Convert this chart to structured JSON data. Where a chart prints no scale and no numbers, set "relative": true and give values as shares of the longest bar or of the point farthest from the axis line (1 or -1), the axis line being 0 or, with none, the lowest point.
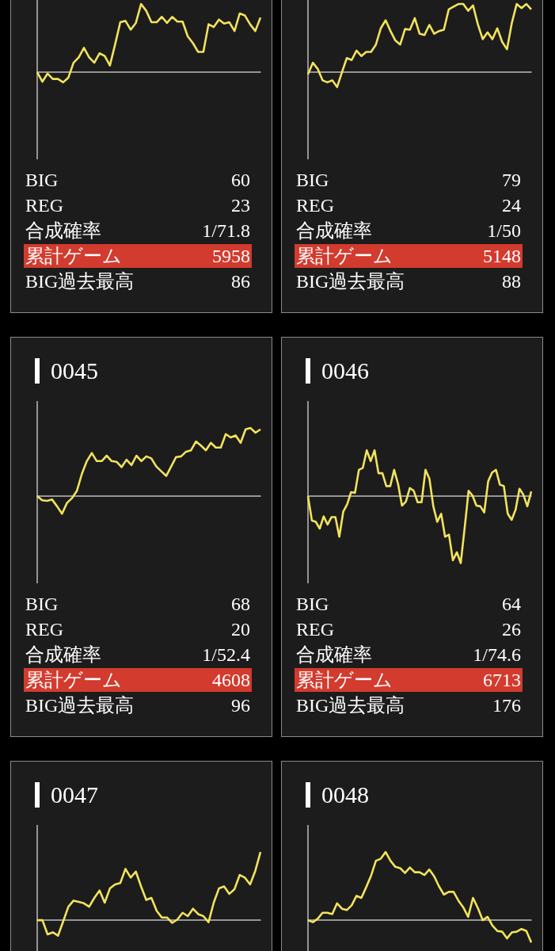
{
  "chart_data": [
    {
      "type": "line",
      "relative": true,
      "tick_labels": false,
      "categories": [
        null,
        null,
        null,
        null,
        null,
        null,
        null,
        null,
        null,
        null,
        null,
        null,
        null,
        null,
        null,
        null,
        null,
        null,
        null,
        null,
        null,
        null,
        null,
        null,
        null,
        null,
        null,
        null,
        null,
        null,
        null,
        null,
        null,
        null,
        null,
        null,
        null,
        null,
        null,
        null,
        null,
        null,
        null,
        null
      ],
      "series": [
        {
          "color": "#f2e35c",
          "values": [
            -0.01,
            -0.15,
            -0.03,
            -0.11,
            -0.11,
            -0.16,
            -0.09,
            0.13,
            0.21,
            0.35,
            0.21,
            0.13,
            0.27,
            0.23,
            0.09,
            0.4,
            0.73,
            0.75,
            0.62,
            0.72,
            1,
            0.9,
            0.73,
            0.73,
            0.81,
            0.72,
            0.81,
            0.74,
            0.74,
            0.52,
            0.42,
            0.29,
            0.29,
            0.7,
            0.66,
            0.77,
            0.71,
            0.73,
            0.6,
            0.86,
            0.83,
            0.7,
            0.6,
            0.8
          ]
        }
      ],
      "annotations": [
        "BIG",
        "60",
        "REG",
        "23",
        "合成確率",
        "1/71.8",
        "累計ゲーム",
        "5958",
        "BIG過去最高",
        "86"
      ]
    },
    {
      "type": "line",
      "relative": true,
      "tick_labels": false,
      "categories": [
        null,
        null,
        null,
        null,
        null,
        null,
        null,
        null,
        null,
        null,
        null,
        null,
        null,
        null,
        null,
        null,
        null,
        null,
        null,
        null,
        null,
        null,
        null,
        null,
        null,
        null,
        null,
        null,
        null,
        null,
        null,
        null,
        null,
        null,
        null,
        null,
        null,
        null,
        null,
        null,
        null,
        null,
        null,
        null,
        null,
        null,
        null
      ],
      "series": [
        {
          "color": "#f2e35c",
          "values": [
            -0.04,
            0.13,
            0.04,
            -0.13,
            -0.16,
            -0.13,
            -0.23,
            -0.01,
            0.2,
            0.17,
            0.31,
            0.23,
            0.29,
            0.29,
            0.4,
            0.64,
            0.76,
            0.6,
            0.46,
            0.4,
            0.63,
            0.62,
            0.79,
            0.56,
            0.54,
            0.69,
            0.56,
            0.6,
            0.62,
            0.92,
            0.96,
            1,
            1,
            0.9,
            0.98,
            0.7,
            0.48,
            0.58,
            0.48,
            0.64,
            0.44,
            0.33,
            0.72,
            1,
            0.94,
            1,
            0.92
          ]
        }
      ],
      "annotations": [
        "BIG",
        "79",
        "REG",
        "24",
        "合成確率",
        "1/50",
        "累計ゲーム",
        "5148",
        "BIG過去最高",
        "88"
      ]
    },
    {
      "type": "line",
      "relative": true,
      "tick_labels": false,
      "title": "0045",
      "categories": [
        null,
        null,
        null,
        null,
        null,
        null,
        null,
        null,
        null,
        null,
        null,
        null,
        null,
        null,
        null,
        null,
        null,
        null,
        null,
        null,
        null,
        null,
        null,
        null,
        null,
        null,
        null,
        null,
        null,
        null,
        null,
        null,
        null,
        null,
        null,
        null,
        null,
        null,
        null,
        null,
        null,
        null,
        null,
        null,
        null,
        null
      ],
      "series": [
        {
          "color": "#f2e35c",
          "values": [
            -0.01,
            -0.07,
            -0.08,
            -0.06,
            -0.16,
            -0.27,
            -0.11,
            -0.04,
            0.07,
            0.32,
            0.51,
            0.63,
            0.51,
            0.51,
            0.59,
            0.51,
            0.5,
            0.42,
            0.53,
            0.45,
            0.59,
            0.51,
            0.58,
            0.55,
            0.43,
            0.36,
            0.29,
            0.43,
            0.57,
            0.58,
            0.65,
            0.67,
            0.8,
            0.74,
            0.67,
            0.78,
            0.71,
            0.71,
            0.91,
            0.86,
            0.89,
            0.78,
            0.98,
            1,
            0.93,
            0.98
          ]
        }
      ],
      "annotations": [
        "BIG",
        "68",
        "REG",
        "20",
        "合成確率",
        "1/52.4",
        "累計ゲーム",
        "4608",
        "BIG過去最高",
        "96"
      ]
    },
    {
      "type": "line",
      "relative": true,
      "tick_labels": false,
      "title": "0046",
      "categories": [
        null,
        null,
        null,
        null,
        null,
        null,
        null,
        null,
        null,
        null,
        null,
        null,
        null,
        null,
        null,
        null,
        null,
        null,
        null,
        null,
        null,
        null,
        null,
        null,
        null,
        null,
        null,
        null,
        null,
        null,
        null,
        null,
        null,
        null,
        null,
        null,
        null,
        null,
        null,
        null,
        null,
        null,
        null,
        null,
        null,
        null,
        null,
        null,
        null,
        null,
        null,
        null,
        null,
        null,
        null,
        null,
        null,
        null
      ],
      "series": [
        {
          "color": "#f2e35c",
          "values": [
            -0.01,
            -0.37,
            -0.39,
            -0.49,
            -0.31,
            -0.43,
            -0.32,
            -0.32,
            -0.61,
            -0.24,
            -0.13,
            0.05,
            0.04,
            0.38,
            0.41,
            0.67,
            0.51,
            0.67,
            0.33,
            0.33,
            0.14,
            0.14,
            0.38,
            0.17,
            -0.15,
            -0.09,
            0.11,
            0.07,
            -0.1,
            -0.1,
            0.38,
            0.25,
            -0.16,
            -0.39,
            -0.27,
            -0.61,
            -0.58,
            -0.96,
            -0.84,
            -1,
            -0.48,
            0.07,
            0,
            -0.15,
            -0.16,
            -0.25,
            0.21,
            0.34,
            0.38,
            0.16,
            0.14,
            -0.27,
            -0.36,
            -0.21,
            0.1,
            0.01,
            -0.16,
            0.06
          ]
        }
      ],
      "annotations": [
        "BIG",
        "64",
        "REG",
        "26",
        "合成確率",
        "1/74.6",
        "累計ゲーム",
        "6713",
        "BIG過去最高",
        "176"
      ]
    },
    {
      "type": "line",
      "relative": true,
      "tick_labels": false,
      "title": "0047",
      "categories": [
        null,
        null,
        null,
        null,
        null,
        null,
        null,
        null,
        null,
        null,
        null,
        null,
        null,
        null,
        null,
        null,
        null,
        null,
        null,
        null,
        null,
        null,
        null,
        null,
        null,
        null,
        null,
        null,
        null,
        null,
        null,
        null,
        null,
        null,
        null,
        null,
        null,
        null,
        null,
        null,
        null,
        null,
        null,
        null
      ],
      "series": [
        {
          "color": "#f2e35c",
          "values": [
            -0.01,
            -0.01,
            -0.22,
            -0.19,
            -0.24,
            -0.03,
            0.19,
            0.28,
            0.26,
            0.24,
            0.19,
            0.32,
            0.43,
            0.25,
            0.46,
            0.52,
            0.54,
            0.75,
            0.62,
            0.71,
            0.49,
            0.29,
            0.32,
            0.13,
            0.03,
            0.03,
            -0.05,
            0,
            0.1,
            0.05,
            0.16,
            0.08,
            0.05,
            -0.04,
            0.25,
            0.46,
            0.49,
            0.38,
            0.45,
            0.66,
            0.62,
            0.52,
            0.72,
            1
          ]
        }
      ]
    },
    {
      "type": "line",
      "relative": true,
      "tick_labels": false,
      "title": "0048",
      "categories": [
        null,
        null,
        null,
        null,
        null,
        null,
        null,
        null,
        null,
        null,
        null,
        null,
        null,
        null,
        null,
        null,
        null,
        null,
        null,
        null,
        null,
        null,
        null,
        null,
        null,
        null,
        null,
        null,
        null,
        null,
        null,
        null,
        null,
        null,
        null,
        null,
        null,
        null,
        null,
        null,
        null,
        null,
        null,
        null,
        null,
        null,
        null
      ],
      "series": [
        {
          "color": "#f2e35c",
          "values": [
            -0.01,
            -0.04,
            0.01,
            0.1,
            0.1,
            0.08,
            0.24,
            0.16,
            0.14,
            0.21,
            0.35,
            0.32,
            0.48,
            0.65,
            0.87,
            0.9,
            1,
            0.87,
            0.78,
            0.76,
            0.69,
            0.77,
            0.7,
            0.7,
            0.66,
            0.74,
            0.64,
            0.49,
            0.37,
            0.41,
            0.41,
            0.28,
            0.18,
            0.04,
            0.32,
            0.17,
            -0.01,
            0.04,
            -0.09,
            -0.17,
            -0.18,
            -0.28,
            -0.19,
            -0.18,
            -0.14,
            -0.17,
            -0.34
          ]
        }
      ]
    }
  ]
}
